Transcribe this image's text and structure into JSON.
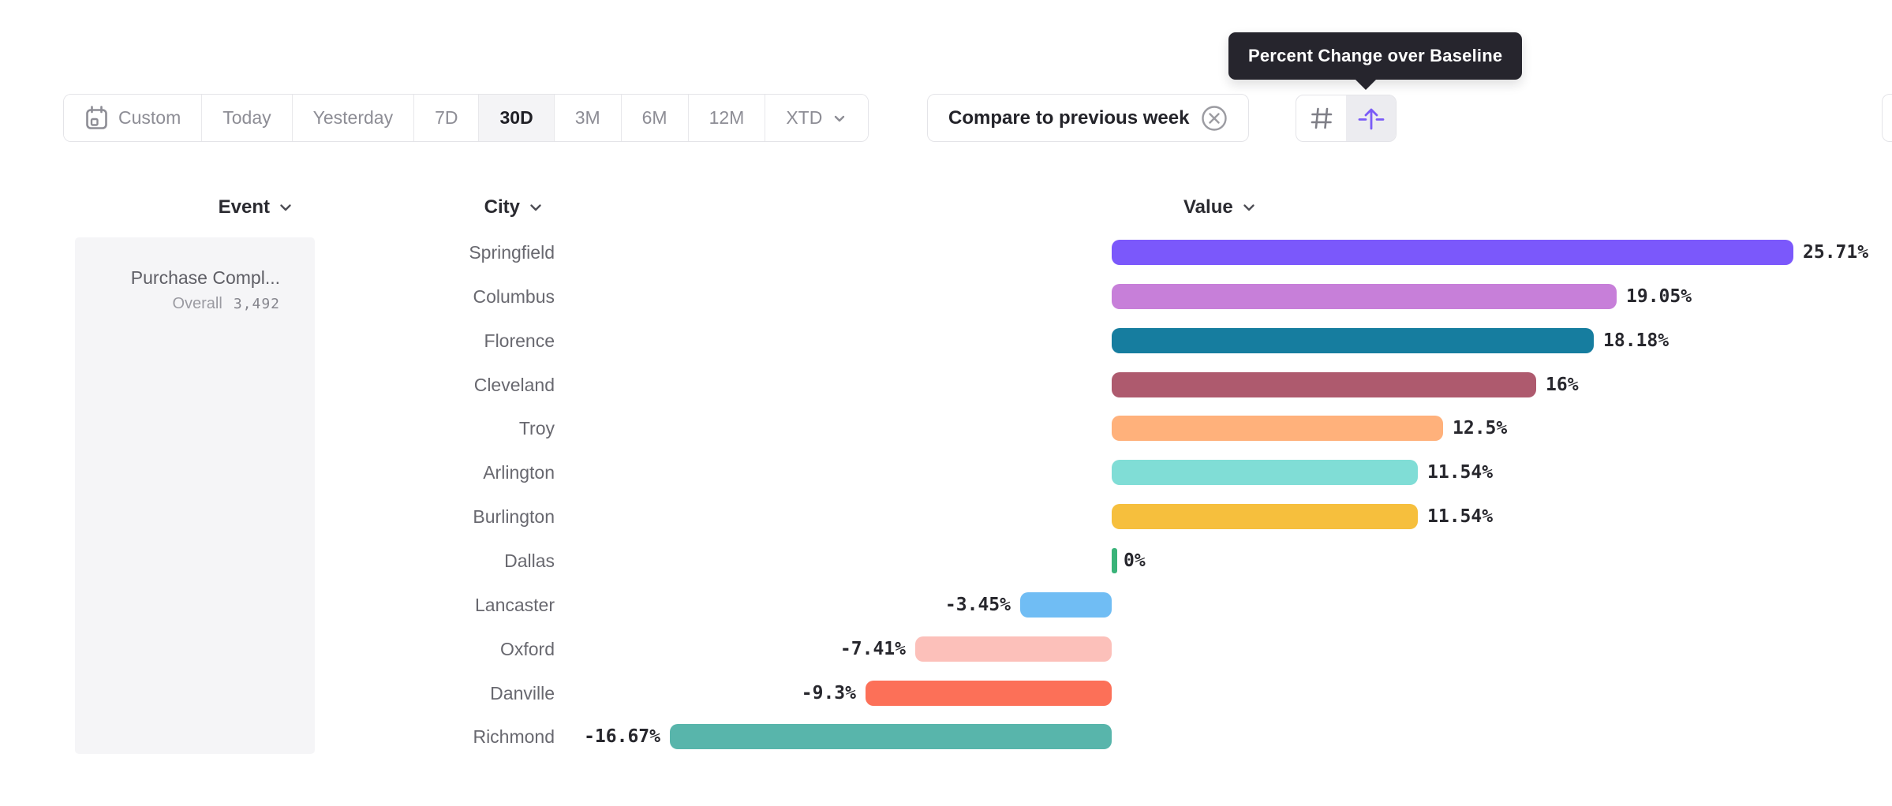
{
  "tooltip": {
    "text": "Percent Change over Baseline"
  },
  "toolbar": {
    "date_range": {
      "buttons": [
        {
          "label": "Custom",
          "icon": "calendar-icon",
          "selected": false
        },
        {
          "label": "Today",
          "selected": false
        },
        {
          "label": "Yesterday",
          "selected": false
        },
        {
          "label": "7D",
          "selected": false
        },
        {
          "label": "30D",
          "selected": true
        },
        {
          "label": "3M",
          "selected": false
        },
        {
          "label": "6M",
          "selected": false
        },
        {
          "label": "12M",
          "selected": false
        },
        {
          "label": "XTD",
          "icon": "chevron-down-icon",
          "selected": false
        }
      ]
    },
    "compare_chip": {
      "label": "Compare to previous week",
      "close_icon": "circle-x-icon"
    },
    "view_toggle": {
      "options": [
        {
          "name": "absolute-numbers",
          "icon": "number-sign-icon",
          "selected": false
        },
        {
          "name": "percent-change-over-baseline",
          "icon": "baseline-arrow-icon",
          "selected": true
        }
      ]
    }
  },
  "table": {
    "headers": [
      {
        "label": "Event",
        "icon": "chevron-down-icon"
      },
      {
        "label": "City",
        "icon": "chevron-down-icon"
      },
      {
        "label": "Value",
        "icon": "chevron-down-icon"
      }
    ]
  },
  "event_panel": {
    "event_name": "Purchase Compl...",
    "overall_label": "Overall",
    "overall_value": "3,492"
  },
  "chart_data": {
    "type": "bar",
    "orientation": "horizontal",
    "unit": "%",
    "title": "Percent Change over Baseline",
    "baseline": 0,
    "xlim": [
      -16.67,
      25.71
    ],
    "grid": false,
    "categories": [
      "Springfield",
      "Columbus",
      "Florence",
      "Cleveland",
      "Troy",
      "Arlington",
      "Burlington",
      "Dallas",
      "Lancaster",
      "Oxford",
      "Danville",
      "Richmond"
    ],
    "values": [
      25.71,
      19.05,
      18.18,
      16,
      12.5,
      11.54,
      11.54,
      0,
      -3.45,
      -7.41,
      -9.3,
      -16.67
    ],
    "labels": [
      "25.71%",
      "19.05%",
      "18.18%",
      "16%",
      "12.5%",
      "11.54%",
      "11.54%",
      "0%",
      "-3.45%",
      "-7.41%",
      "-9.3%",
      "-16.67%"
    ],
    "colors": [
      "#7b58fb",
      "#c77fd9",
      "#167d9f",
      "#ae5a6e",
      "#ffb17b",
      "#80ddd6",
      "#f6bf3d",
      "#3ab379",
      "#70bdf4",
      "#fcc0ba",
      "#fc7058",
      "#58b5ab"
    ]
  }
}
